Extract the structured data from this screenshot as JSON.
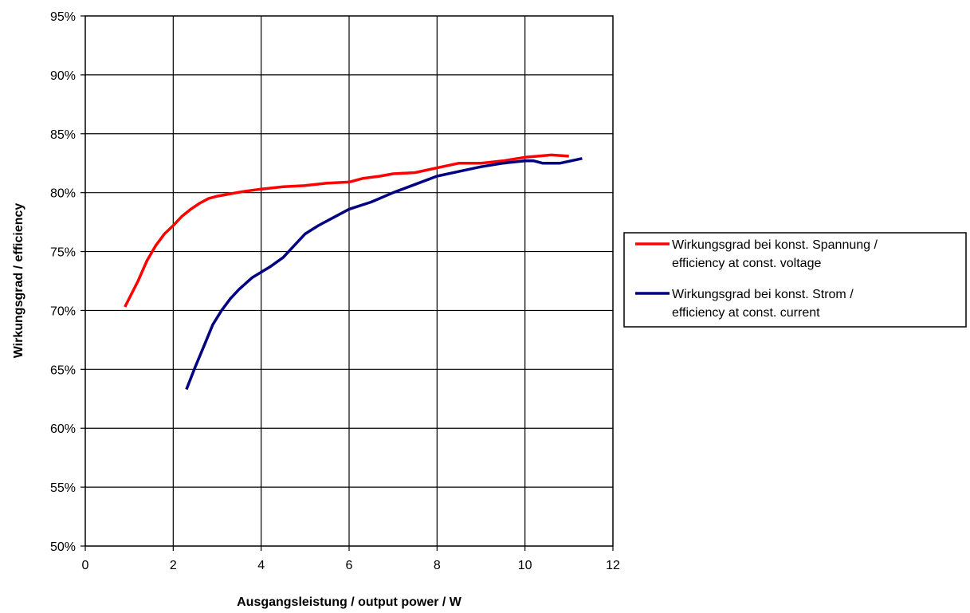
{
  "chart_data": {
    "type": "line",
    "xlabel": "Ausgangsleistung / output power / W",
    "ylabel": "Wirkungsgrad / efficiency",
    "xlim": [
      0,
      12
    ],
    "ylim": [
      0.5,
      0.95
    ],
    "x_ticks": [
      "0",
      "2",
      "4",
      "6",
      "8",
      "10",
      "12"
    ],
    "y_ticks": [
      "50%",
      "55%",
      "60%",
      "65%",
      "70%",
      "75%",
      "80%",
      "85%",
      "90%",
      "95%"
    ],
    "grid": true,
    "legend_position": "right",
    "series": [
      {
        "name_line1": "Wirkungsgrad bei konst. Spannung /",
        "name_line2": "efficiency at const. voltage",
        "color": "#ff0000",
        "points": [
          [
            0.9,
            0.703
          ],
          [
            1.2,
            0.725
          ],
          [
            1.4,
            0.742
          ],
          [
            1.6,
            0.755
          ],
          [
            1.8,
            0.765
          ],
          [
            2.0,
            0.772
          ],
          [
            2.2,
            0.78
          ],
          [
            2.4,
            0.786
          ],
          [
            2.6,
            0.791
          ],
          [
            2.8,
            0.795
          ],
          [
            3.0,
            0.797
          ],
          [
            3.3,
            0.799
          ],
          [
            3.6,
            0.801
          ],
          [
            4.0,
            0.803
          ],
          [
            4.5,
            0.805
          ],
          [
            5.0,
            0.806
          ],
          [
            5.5,
            0.808
          ],
          [
            6.0,
            0.809
          ],
          [
            6.3,
            0.812
          ],
          [
            6.7,
            0.814
          ],
          [
            7.0,
            0.816
          ],
          [
            7.5,
            0.817
          ],
          [
            8.0,
            0.821
          ],
          [
            8.5,
            0.825
          ],
          [
            9.0,
            0.825
          ],
          [
            9.5,
            0.827
          ],
          [
            10.0,
            0.83
          ],
          [
            10.3,
            0.831
          ],
          [
            10.6,
            0.832
          ],
          [
            11.0,
            0.831
          ]
        ]
      },
      {
        "name_line1": "Wirkungsgrad bei konst. Strom /",
        "name_line2": "efficiency at const. current",
        "color": "#000080",
        "points": [
          [
            2.3,
            0.633
          ],
          [
            2.5,
            0.652
          ],
          [
            2.7,
            0.67
          ],
          [
            2.9,
            0.688
          ],
          [
            3.1,
            0.7
          ],
          [
            3.3,
            0.71
          ],
          [
            3.5,
            0.718
          ],
          [
            3.8,
            0.728
          ],
          [
            4.2,
            0.737
          ],
          [
            4.5,
            0.745
          ],
          [
            4.8,
            0.757
          ],
          [
            5.0,
            0.765
          ],
          [
            5.3,
            0.772
          ],
          [
            5.6,
            0.778
          ],
          [
            6.0,
            0.786
          ],
          [
            6.5,
            0.792
          ],
          [
            7.0,
            0.8
          ],
          [
            7.5,
            0.807
          ],
          [
            8.0,
            0.814
          ],
          [
            8.5,
            0.818
          ],
          [
            9.0,
            0.822
          ],
          [
            9.5,
            0.825
          ],
          [
            10.0,
            0.827
          ],
          [
            10.2,
            0.827
          ],
          [
            10.4,
            0.825
          ],
          [
            10.8,
            0.825
          ],
          [
            11.3,
            0.829
          ]
        ]
      }
    ]
  }
}
